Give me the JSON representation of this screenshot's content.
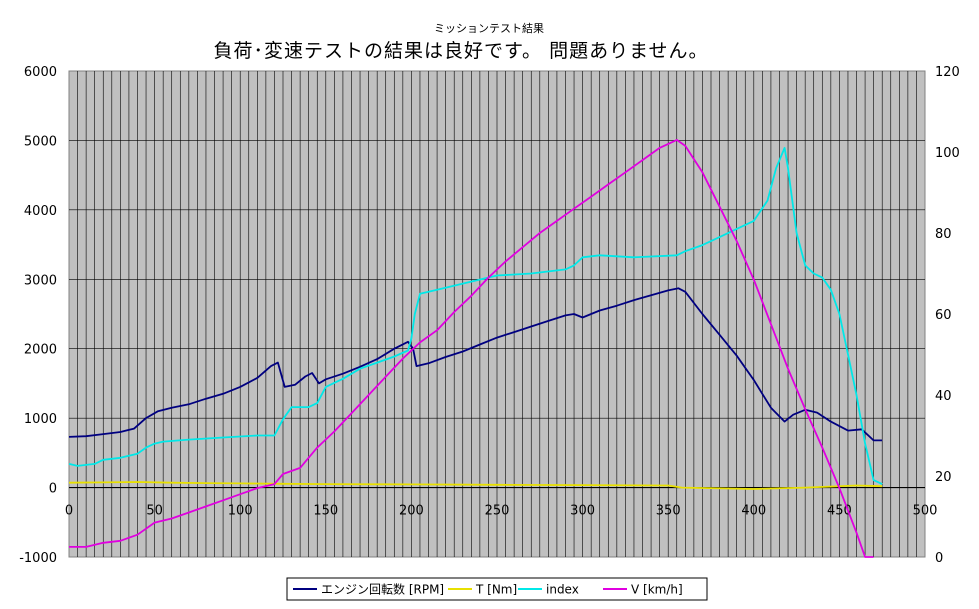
{
  "chart_data": {
    "type": "line",
    "subtitle": "ミッションテスト結果",
    "title": "負荷･変速テストの結果は良好です。 問題ありません。",
    "xlim": [
      0,
      500
    ],
    "x_ticks": [
      0,
      50,
      100,
      150,
      200,
      250,
      300,
      350,
      400,
      450,
      500
    ],
    "ylim_left": [
      -1000,
      6000
    ],
    "y_left_ticks": [
      -1000,
      0,
      1000,
      2000,
      3000,
      4000,
      5000,
      6000
    ],
    "ylim_right": [
      0,
      120
    ],
    "y_right_ticks": [
      0,
      20,
      40,
      60,
      80,
      100,
      120
    ],
    "grid": true,
    "legend_position": "bottom",
    "plot_background": "#c0c0c0",
    "series": [
      {
        "name": "エンジン回転数 [RPM]",
        "color": "#000080",
        "axis": "left",
        "points": [
          [
            0,
            730
          ],
          [
            10,
            740
          ],
          [
            20,
            770
          ],
          [
            30,
            800
          ],
          [
            38,
            850
          ],
          [
            45,
            1000
          ],
          [
            52,
            1100
          ],
          [
            60,
            1150
          ],
          [
            70,
            1200
          ],
          [
            80,
            1280
          ],
          [
            90,
            1350
          ],
          [
            100,
            1450
          ],
          [
            110,
            1580
          ],
          [
            118,
            1750
          ],
          [
            122,
            1800
          ],
          [
            126,
            1450
          ],
          [
            132,
            1480
          ],
          [
            138,
            1600
          ],
          [
            142,
            1650
          ],
          [
            146,
            1500
          ],
          [
            150,
            1560
          ],
          [
            160,
            1640
          ],
          [
            170,
            1740
          ],
          [
            180,
            1850
          ],
          [
            190,
            2000
          ],
          [
            198,
            2100
          ],
          [
            201,
            2000
          ],
          [
            203,
            1750
          ],
          [
            210,
            1790
          ],
          [
            220,
            1880
          ],
          [
            230,
            1960
          ],
          [
            240,
            2060
          ],
          [
            250,
            2160
          ],
          [
            260,
            2240
          ],
          [
            270,
            2320
          ],
          [
            280,
            2400
          ],
          [
            290,
            2480
          ],
          [
            295,
            2500
          ],
          [
            300,
            2450
          ],
          [
            310,
            2550
          ],
          [
            320,
            2620
          ],
          [
            330,
            2700
          ],
          [
            340,
            2770
          ],
          [
            350,
            2840
          ],
          [
            356,
            2870
          ],
          [
            360,
            2820
          ],
          [
            370,
            2500
          ],
          [
            380,
            2200
          ],
          [
            390,
            1900
          ],
          [
            400,
            1550
          ],
          [
            410,
            1150
          ],
          [
            418,
            950
          ],
          [
            423,
            1050
          ],
          [
            430,
            1120
          ],
          [
            437,
            1080
          ],
          [
            445,
            950
          ],
          [
            455,
            820
          ],
          [
            463,
            840
          ],
          [
            470,
            680
          ],
          [
            475,
            680
          ]
        ]
      },
      {
        "name": "T [Nm]",
        "color": "#e8e000",
        "axis": "left",
        "points": [
          [
            0,
            70
          ],
          [
            20,
            75
          ],
          [
            40,
            80
          ],
          [
            60,
            70
          ],
          [
            80,
            65
          ],
          [
            100,
            60
          ],
          [
            125,
            55
          ],
          [
            150,
            50
          ],
          [
            200,
            45
          ],
          [
            250,
            40
          ],
          [
            300,
            35
          ],
          [
            350,
            30
          ],
          [
            358,
            0
          ],
          [
            400,
            -20
          ],
          [
            430,
            0
          ],
          [
            460,
            30
          ],
          [
            475,
            20
          ]
        ]
      },
      {
        "name": "index",
        "color": "#00e8e8",
        "axis": "right",
        "points": [
          [
            0,
            23
          ],
          [
            5,
            22.5
          ],
          [
            15,
            23
          ],
          [
            20,
            24
          ],
          [
            30,
            24.5
          ],
          [
            40,
            25.5
          ],
          [
            45,
            27
          ],
          [
            50,
            28
          ],
          [
            55,
            28.5
          ],
          [
            70,
            29
          ],
          [
            90,
            29.5
          ],
          [
            110,
            30
          ],
          [
            120,
            30
          ],
          [
            125,
            34
          ],
          [
            130,
            37
          ],
          [
            140,
            37
          ],
          [
            145,
            38
          ],
          [
            150,
            42
          ],
          [
            160,
            44
          ],
          [
            170,
            46.5
          ],
          [
            180,
            48
          ],
          [
            190,
            49.5
          ],
          [
            198,
            51
          ],
          [
            200,
            54
          ],
          [
            202,
            60
          ],
          [
            205,
            65
          ],
          [
            215,
            66
          ],
          [
            230,
            67.5
          ],
          [
            250,
            69.5
          ],
          [
            270,
            70
          ],
          [
            290,
            71
          ],
          [
            295,
            72
          ],
          [
            300,
            74
          ],
          [
            310,
            74.5
          ],
          [
            330,
            74
          ],
          [
            355,
            74.5
          ],
          [
            360,
            75.5
          ],
          [
            370,
            77
          ],
          [
            380,
            79
          ],
          [
            390,
            81
          ],
          [
            400,
            83
          ],
          [
            408,
            88
          ],
          [
            413,
            96
          ],
          [
            418,
            101
          ],
          [
            420,
            96
          ],
          [
            425,
            80
          ],
          [
            430,
            72
          ],
          [
            435,
            70
          ],
          [
            440,
            69
          ],
          [
            445,
            66
          ],
          [
            450,
            60
          ],
          [
            455,
            50
          ],
          [
            460,
            40
          ],
          [
            465,
            28
          ],
          [
            470,
            19
          ],
          [
            475,
            18
          ]
        ]
      },
      {
        "name": "V [km/h]",
        "color": "#e000e0",
        "axis": "right",
        "points": [
          [
            0,
            2.5
          ],
          [
            10,
            2.5
          ],
          [
            20,
            3.5
          ],
          [
            30,
            4
          ],
          [
            40,
            5.5
          ],
          [
            50,
            8.5
          ],
          [
            60,
            9.5
          ],
          [
            70,
            11
          ],
          [
            80,
            12.5
          ],
          [
            90,
            14
          ],
          [
            100,
            15.5
          ],
          [
            110,
            17
          ],
          [
            120,
            18
          ],
          [
            125,
            20.5
          ],
          [
            135,
            22
          ],
          [
            145,
            27
          ],
          [
            155,
            31
          ],
          [
            165,
            35.5
          ],
          [
            175,
            40
          ],
          [
            185,
            44.5
          ],
          [
            195,
            49
          ],
          [
            205,
            53
          ],
          [
            215,
            56
          ],
          [
            225,
            60.5
          ],
          [
            235,
            64.5
          ],
          [
            245,
            69
          ],
          [
            255,
            73
          ],
          [
            265,
            76.5
          ],
          [
            275,
            80
          ],
          [
            285,
            83
          ],
          [
            295,
            86
          ],
          [
            305,
            89
          ],
          [
            315,
            92
          ],
          [
            325,
            95
          ],
          [
            335,
            98
          ],
          [
            345,
            101
          ],
          [
            355,
            103
          ],
          [
            360,
            101.5
          ],
          [
            370,
            95
          ],
          [
            380,
            86.5
          ],
          [
            390,
            78
          ],
          [
            400,
            68.5
          ],
          [
            410,
            57.5
          ],
          [
            420,
            46.5
          ],
          [
            430,
            36.5
          ],
          [
            440,
            27
          ],
          [
            450,
            17
          ],
          [
            460,
            6
          ],
          [
            465,
            0
          ],
          [
            470,
            0
          ]
        ]
      }
    ]
  }
}
